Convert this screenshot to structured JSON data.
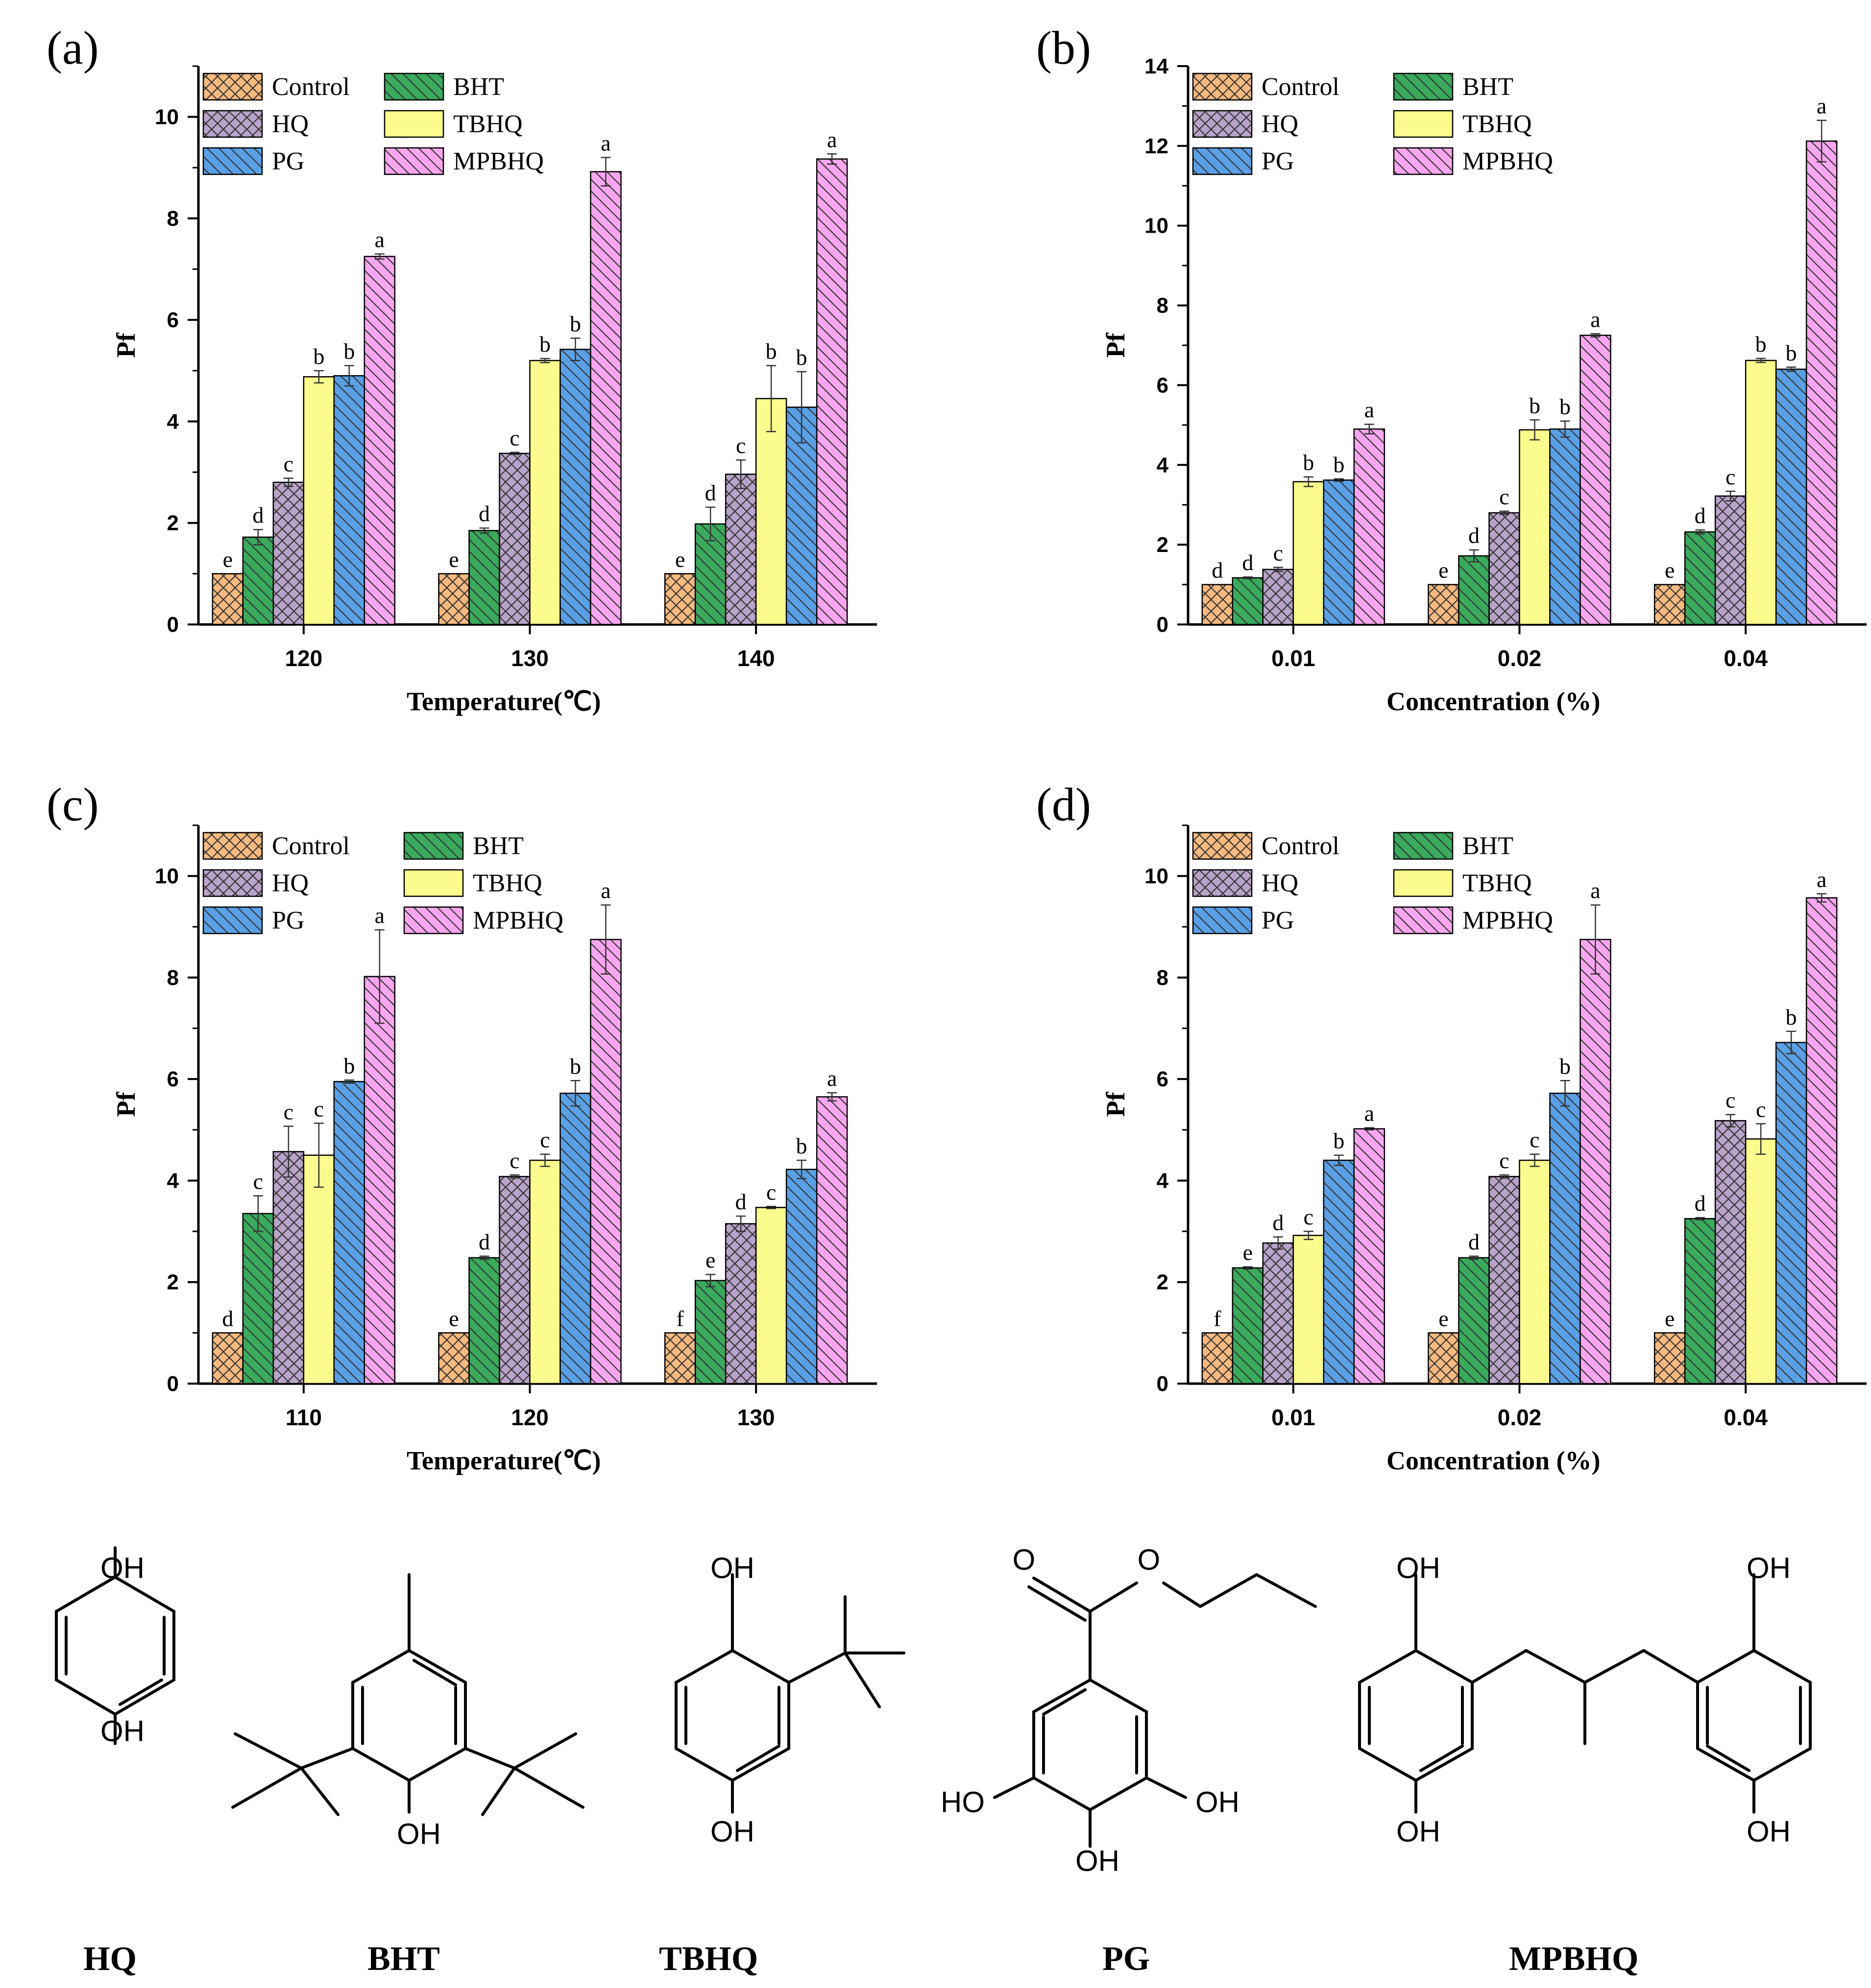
{
  "colors": {
    "Control": "#f6b97f",
    "BHT": "#3aaa5c",
    "HQ": "#b9a3c9",
    "TBHQ": "#fbfb8e",
    "PG": "#5aa0e6",
    "MPBHQ": "#f8a6f0",
    "axis": "#000000"
  },
  "legend_labels": [
    "Control",
    "BHT",
    "HQ",
    "TBHQ",
    "PG",
    "MPBHQ"
  ],
  "panel_labels": [
    "(a)",
    "(b)",
    "(c)",
    "(d)"
  ],
  "chart_data": [
    {
      "panel": "(a)",
      "type": "bar",
      "xlabel": "Temperature(℃)",
      "ylabel": "Pf",
      "ylim": [
        0,
        11
      ],
      "yticks": [
        0,
        2,
        4,
        6,
        8,
        10
      ],
      "categories": [
        "120",
        "130",
        "140"
      ],
      "legend": "top-left",
      "series": [
        {
          "name": "Control",
          "values": [
            1,
            1,
            1
          ],
          "errors": [
            0,
            0,
            0
          ],
          "labels": [
            "e",
            "e",
            "e"
          ]
        },
        {
          "name": "BHT",
          "values": [
            1.72,
            1.85,
            1.98
          ],
          "errors": [
            0.15,
            0.05,
            0.33
          ],
          "labels": [
            "d",
            "d",
            "d"
          ]
        },
        {
          "name": "HQ",
          "values": [
            2.8,
            3.37,
            2.96
          ],
          "errors": [
            0.08,
            0.02,
            0.28
          ],
          "labels": [
            "c",
            "c",
            "c"
          ]
        },
        {
          "name": "TBHQ",
          "values": [
            4.88,
            5.2,
            4.45
          ],
          "errors": [
            0.12,
            0.04,
            0.65
          ],
          "labels": [
            "b",
            "b",
            "b"
          ]
        },
        {
          "name": "PG",
          "values": [
            4.9,
            5.42,
            4.28
          ],
          "errors": [
            0.2,
            0.22,
            0.7
          ],
          "labels": [
            "b",
            "b",
            "b"
          ]
        },
        {
          "name": "MPBHQ",
          "values": [
            7.25,
            8.92,
            9.17
          ],
          "errors": [
            0.05,
            0.28,
            0.1
          ],
          "labels": [
            "a",
            "a",
            "a"
          ]
        }
      ]
    },
    {
      "panel": "(b)",
      "type": "bar",
      "xlabel": "Concentration (%)",
      "ylabel": "Pf",
      "ylim": [
        0,
        14
      ],
      "yticks": [
        0,
        2,
        4,
        6,
        8,
        10,
        12,
        14
      ],
      "categories": [
        "0.01",
        "0.02",
        "0.04"
      ],
      "legend": "top-left",
      "series": [
        {
          "name": "Control",
          "values": [
            1,
            1,
            1
          ],
          "errors": [
            0,
            0,
            0
          ],
          "labels": [
            "d",
            "e",
            "e"
          ]
        },
        {
          "name": "BHT",
          "values": [
            1.17,
            1.72,
            2.32
          ],
          "errors": [
            0.02,
            0.15,
            0.05
          ],
          "labels": [
            "d",
            "d",
            "d"
          ]
        },
        {
          "name": "HQ",
          "values": [
            1.38,
            2.8,
            3.22
          ],
          "errors": [
            0.05,
            0.04,
            0.12
          ],
          "labels": [
            "c",
            "c",
            "c"
          ]
        },
        {
          "name": "TBHQ",
          "values": [
            3.58,
            4.88,
            6.62
          ],
          "errors": [
            0.12,
            0.25,
            0.05
          ],
          "labels": [
            "b",
            "b",
            "b"
          ]
        },
        {
          "name": "PG",
          "values": [
            3.62,
            4.9,
            6.4
          ],
          "errors": [
            0.03,
            0.2,
            0.05
          ],
          "labels": [
            "b",
            "b",
            "b"
          ]
        },
        {
          "name": "MPBHQ",
          "values": [
            4.9,
            7.25,
            12.12
          ],
          "errors": [
            0.12,
            0.04,
            0.52
          ],
          "labels": [
            "a",
            "a",
            "a"
          ]
        }
      ]
    },
    {
      "panel": "(c)",
      "type": "bar",
      "xlabel": "Temperature(℃)",
      "ylabel": "Pf",
      "ylim": [
        0,
        11
      ],
      "yticks": [
        0,
        2,
        4,
        6,
        8,
        10
      ],
      "categories": [
        "110",
        "120",
        "130"
      ],
      "legend": "top-left",
      "series": [
        {
          "name": "Control",
          "values": [
            1,
            1,
            1
          ],
          "errors": [
            0,
            0,
            0
          ],
          "labels": [
            "d",
            "e",
            "f"
          ]
        },
        {
          "name": "BHT",
          "values": [
            3.35,
            2.48,
            2.03
          ],
          "errors": [
            0.35,
            0.03,
            0.12
          ],
          "labels": [
            "c",
            "d",
            "e"
          ]
        },
        {
          "name": "HQ",
          "values": [
            4.57,
            4.08,
            3.15
          ],
          "errors": [
            0.5,
            0.03,
            0.15
          ],
          "labels": [
            "c",
            "c",
            "d"
          ]
        },
        {
          "name": "TBHQ",
          "values": [
            4.5,
            4.4,
            3.47
          ],
          "errors": [
            0.63,
            0.12,
            0.02
          ],
          "labels": [
            "c",
            "c",
            "c"
          ]
        },
        {
          "name": "PG",
          "values": [
            5.95,
            5.72,
            4.22
          ],
          "errors": [
            0.03,
            0.25,
            0.18
          ],
          "labels": [
            "b",
            "b",
            "b"
          ]
        },
        {
          "name": "MPBHQ",
          "values": [
            8.02,
            8.75,
            5.65
          ],
          "errors": [
            0.92,
            0.68,
            0.08
          ],
          "labels": [
            "a",
            "a",
            "a"
          ]
        }
      ]
    },
    {
      "panel": "(d)",
      "type": "bar",
      "xlabel": "Concentration (%)",
      "ylabel": "Pf",
      "ylim": [
        0,
        11
      ],
      "yticks": [
        0,
        2,
        4,
        6,
        8,
        10
      ],
      "categories": [
        "0.01",
        "0.02",
        "0.04"
      ],
      "legend": "top-left",
      "series": [
        {
          "name": "Control",
          "values": [
            1,
            1,
            1
          ],
          "errors": [
            0,
            0,
            0
          ],
          "labels": [
            "f",
            "e",
            "e"
          ]
        },
        {
          "name": "BHT",
          "values": [
            2.28,
            2.48,
            3.25
          ],
          "errors": [
            0.02,
            0.03,
            0.02
          ],
          "labels": [
            "e",
            "d",
            "d"
          ]
        },
        {
          "name": "HQ",
          "values": [
            2.77,
            4.08,
            5.18
          ],
          "errors": [
            0.12,
            0.03,
            0.12
          ],
          "labels": [
            "d",
            "c",
            "c"
          ]
        },
        {
          "name": "TBHQ",
          "values": [
            2.92,
            4.4,
            4.82
          ],
          "errors": [
            0.08,
            0.12,
            0.3
          ],
          "labels": [
            "c",
            "c",
            "c"
          ]
        },
        {
          "name": "PG",
          "values": [
            4.4,
            5.72,
            6.72
          ],
          "errors": [
            0.1,
            0.25,
            0.22
          ],
          "labels": [
            "b",
            "b",
            "b"
          ]
        },
        {
          "name": "MPBHQ",
          "values": [
            5.02,
            8.75,
            9.57
          ],
          "errors": [
            0.02,
            0.68,
            0.08
          ],
          "labels": [
            "a",
            "a",
            "a"
          ]
        }
      ]
    }
  ],
  "structures": {
    "names": [
      "HQ",
      "BHT",
      "TBHQ",
      "PG",
      "MPBHQ"
    ],
    "labels": {
      "OH": "OH",
      "HO": "HO",
      "O": "O"
    }
  }
}
